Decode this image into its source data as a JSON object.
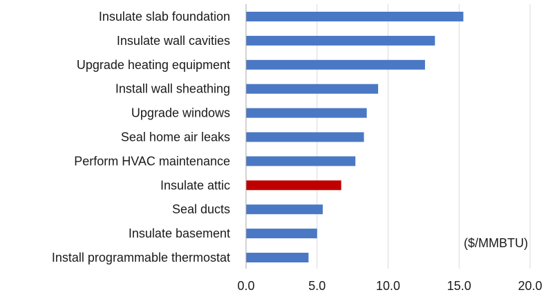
{
  "chart_data": {
    "type": "bar",
    "orientation": "horizontal",
    "categories": [
      "Insulate slab foundation",
      "Insulate wall cavities",
      "Upgrade heating equipment",
      "Install wall sheathing",
      "Upgrade windows",
      "Seal home air leaks",
      "Perform HVAC maintenance",
      "Insulate attic",
      "Seal ducts",
      "Insulate basement",
      "Install programmable thermostat"
    ],
    "values": [
      15.3,
      13.3,
      12.6,
      9.3,
      8.5,
      8.3,
      7.7,
      6.7,
      5.4,
      5.0,
      4.4
    ],
    "highlight_category": "Insulate attic",
    "colors": {
      "bar": "#4a78c4",
      "highlight": "#c00000",
      "grid": "#d9d9d9",
      "axis": "#a6a6a6"
    },
    "xlim": [
      0,
      20
    ],
    "xticks": [
      "0.0",
      "5.0",
      "10.0",
      "15.0",
      "20.0"
    ],
    "unit_label": "($/MMBTU)",
    "grid": true,
    "legend": "none"
  }
}
